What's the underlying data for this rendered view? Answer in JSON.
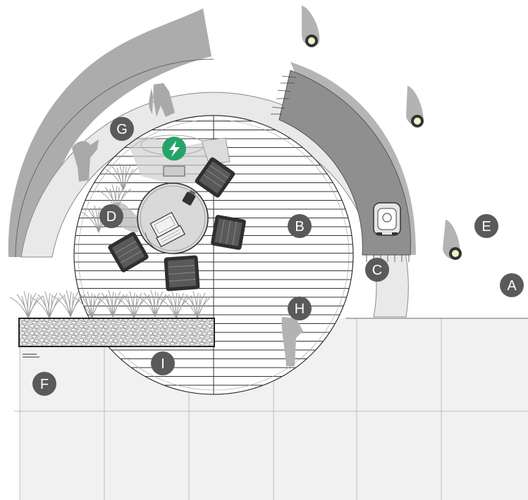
{
  "plan": {
    "markers": [
      {
        "id": "A",
        "label": "A"
      },
      {
        "id": "B",
        "label": "B"
      },
      {
        "id": "C",
        "label": "C"
      },
      {
        "id": "D",
        "label": "D"
      },
      {
        "id": "E",
        "label": "E"
      },
      {
        "id": "F",
        "label": "F"
      },
      {
        "id": "G",
        "label": "G"
      },
      {
        "id": "H",
        "label": "H"
      },
      {
        "id": "I",
        "label": "I"
      }
    ],
    "colors": {
      "marker": "#5a5a5a",
      "charging": "#27a36a",
      "shadow": "#aaaaaa",
      "path": "#e9e9e9",
      "paving": "#f1f1f1",
      "deck_line": "#333333",
      "bench": "#8f8f8f"
    },
    "icons": [
      "lightning-icon",
      "laptop-icon",
      "lamp-icon",
      "robot-mower-icon"
    ]
  }
}
